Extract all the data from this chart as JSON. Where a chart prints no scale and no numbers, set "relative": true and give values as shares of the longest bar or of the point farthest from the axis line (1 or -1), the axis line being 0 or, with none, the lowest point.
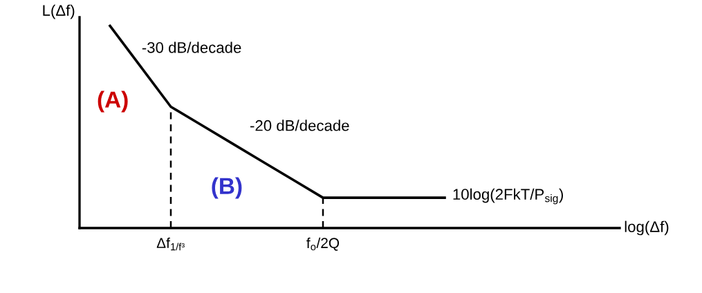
{
  "chart_data": {
    "type": "line",
    "relative": true,
    "ylabel": "L(Δf)",
    "xlabel": "log(Δf)",
    "categories": [
      null,
      null,
      null,
      "Δf$_{1/f³}$",
      null,
      null,
      null,
      null,
      "f$_{o}$/2Q",
      null,
      null,
      null,
      null,
      null,
      null,
      null,
      null,
      null
    ],
    "series": [
      {
        "color": "#000000",
        "values": [
          null,
          1.0,
          0.8,
          0.6,
          0.51,
          0.42,
          0.33,
          0.24,
          0.15,
          0.15,
          0.15,
          0.15,
          0.15,
          null,
          null,
          null,
          null,
          null
        ]
      }
    ],
    "ref_lines": [
      {
        "axis": "x",
        "value": "Δf$_{1/f³}$",
        "color": "#000000",
        "line_style": "dashed"
      },
      {
        "axis": "x",
        "value": "f$_{o}$/2Q",
        "color": "#000000",
        "line_style": "dashed"
      }
    ],
    "annotations": [
      "-30 dB/decade",
      "(A)",
      "-20 dB/decade",
      "(B)",
      "10log(2FkT/P$_{sig}$)"
    ],
    "line_style": "solid",
    "grid": false,
    "legend": false,
    "marker": "none"
  }
}
